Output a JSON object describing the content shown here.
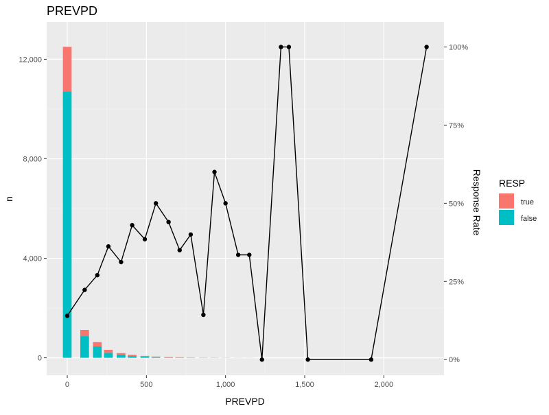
{
  "chart_data": {
    "type": "bar+line",
    "title": "PREVPD",
    "xlabel": "PREVPD",
    "ylabel": "n",
    "y2label": "Response Rate",
    "xlim": [
      -130,
      2380
    ],
    "ylim": [
      -700,
      13500
    ],
    "y2lim": [
      -0.05,
      1.08
    ],
    "x_ticks": [
      0,
      500,
      1000,
      1500,
      2000
    ],
    "x_tick_labels": [
      "0",
      "500",
      "1,000",
      "1,500",
      "2,000"
    ],
    "y_ticks": [
      0,
      4000,
      8000,
      12000
    ],
    "y_tick_labels": [
      "0",
      "4,000",
      "8,000",
      "12,000"
    ],
    "y2_ticks": [
      0,
      0.25,
      0.5,
      0.75,
      1.0
    ],
    "y2_tick_labels": [
      "0%",
      "25%",
      "50%",
      "75%",
      "100%"
    ],
    "bar_width": 55,
    "bars": [
      {
        "x": 0,
        "false": 10700,
        "true": 1800
      },
      {
        "x": 110,
        "false": 870,
        "true": 250
      },
      {
        "x": 190,
        "false": 460,
        "true": 170
      },
      {
        "x": 260,
        "false": 200,
        "true": 120
      },
      {
        "x": 340,
        "false": 130,
        "true": 60
      },
      {
        "x": 410,
        "false": 70,
        "true": 50
      },
      {
        "x": 490,
        "false": 45,
        "true": 30
      },
      {
        "x": 560,
        "false": 30,
        "true": 20
      },
      {
        "x": 640,
        "false": 20,
        "true": 12
      },
      {
        "x": 710,
        "false": 15,
        "true": 8
      },
      {
        "x": 780,
        "false": 10,
        "true": 6
      },
      {
        "x": 860,
        "false": 8,
        "true": 2
      },
      {
        "x": 930,
        "false": 5,
        "true": 4
      },
      {
        "x": 1000,
        "false": 4,
        "true": 3
      },
      {
        "x": 1080,
        "false": 3,
        "true": 1
      },
      {
        "x": 1150,
        "false": 2,
        "true": 1
      }
    ],
    "line": {
      "name": "Response Rate",
      "x": [
        0,
        110,
        190,
        260,
        340,
        410,
        490,
        560,
        640,
        710,
        780,
        860,
        930,
        1000,
        1080,
        1150,
        1230,
        1350,
        1400,
        1520,
        1920,
        2270
      ],
      "y": [
        0.14,
        0.223,
        0.27,
        0.362,
        0.312,
        0.43,
        0.385,
        0.5,
        0.44,
        0.35,
        0.4,
        0.143,
        0.6,
        0.5,
        0.335,
        0.335,
        0.0,
        1.0,
        1.0,
        0.0,
        0.0,
        1.0
      ]
    },
    "legend": {
      "title": "RESP",
      "position": "right",
      "entries": [
        {
          "label": "true",
          "color": "#F8766D"
        },
        {
          "label": "false",
          "color": "#00BFC4"
        }
      ]
    },
    "colors": {
      "true": "#F8766D",
      "false": "#00BFC4",
      "line": "#000000",
      "panel": "#EBEBEB",
      "grid": "#FFFFFF"
    },
    "grid": true
  }
}
